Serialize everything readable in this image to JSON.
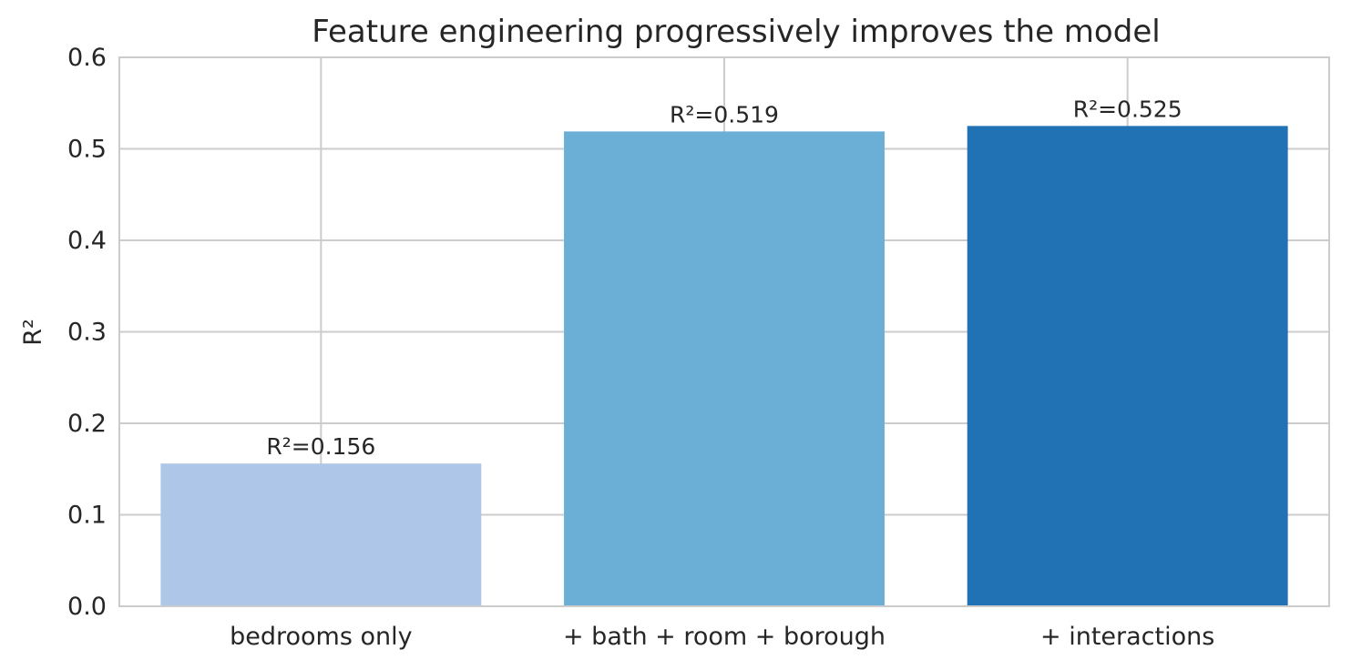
{
  "chart_data": {
    "type": "bar",
    "title": "Feature engineering progressively improves the model",
    "xlabel": "",
    "ylabel": "R²",
    "categories": [
      "bedrooms only",
      "+ bath + room + borough",
      "+ interactions"
    ],
    "values": [
      0.156,
      0.519,
      0.525
    ],
    "data_labels": [
      "R²=0.156",
      "R²=0.519",
      "R²=0.525"
    ],
    "bar_colors": [
      "#aec7e8",
      "#6baed6",
      "#2171b5"
    ],
    "ylim": [
      0,
      0.6
    ],
    "yticks": [
      0.0,
      0.1,
      0.2,
      0.3,
      0.4,
      0.5,
      0.6
    ],
    "ytick_labels": [
      "0.0",
      "0.1",
      "0.2",
      "0.3",
      "0.4",
      "0.5",
      "0.6"
    ],
    "grid": true,
    "legend": "none"
  }
}
